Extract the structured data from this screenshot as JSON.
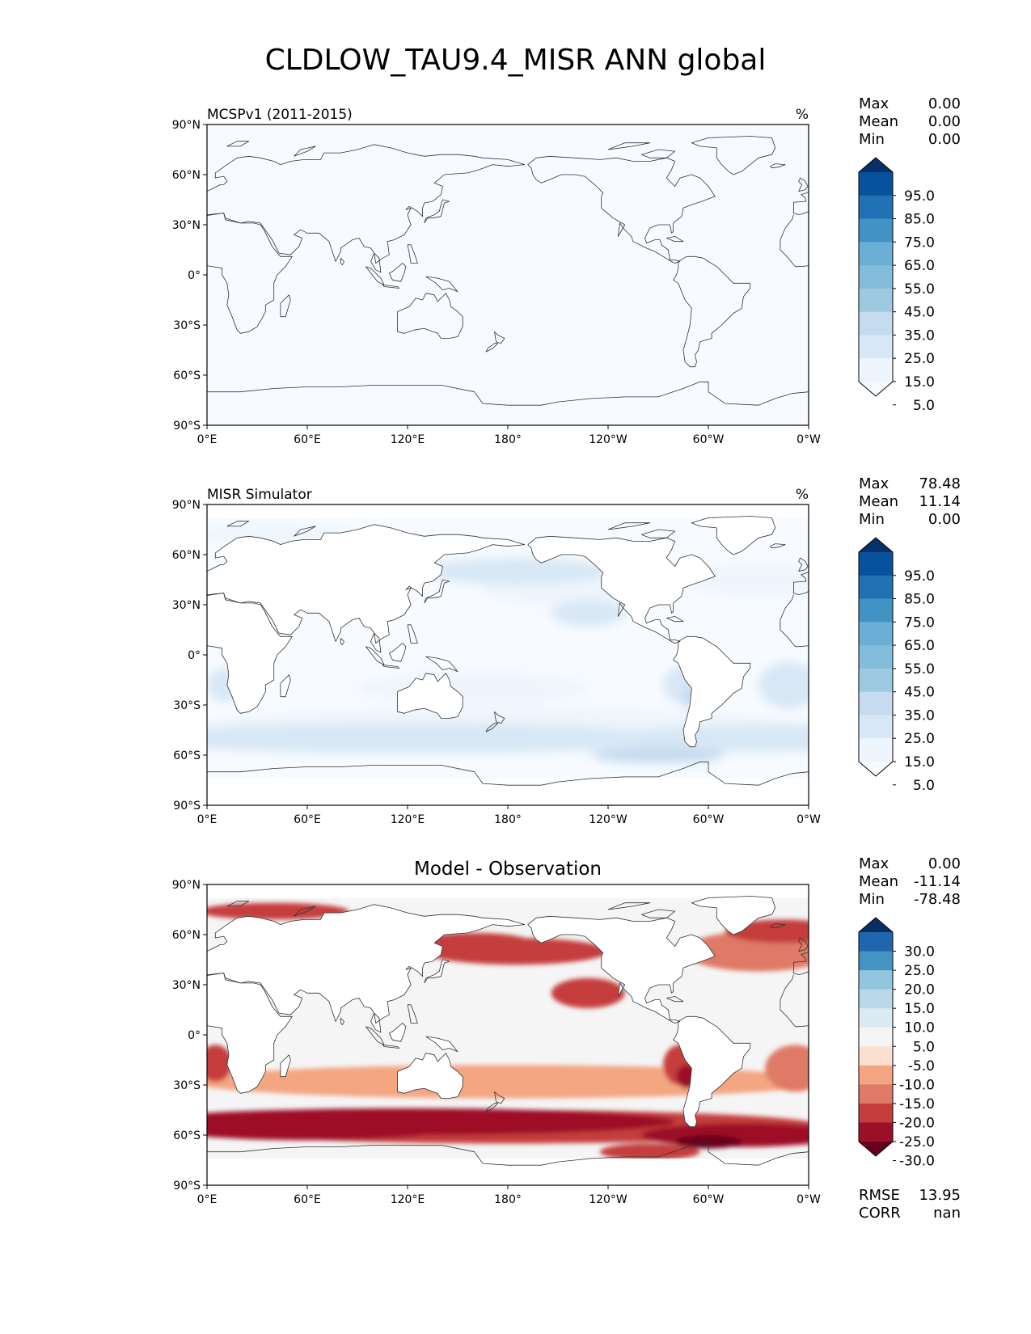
{
  "title": "CLDLOW_TAU9.4_MISR ANN global",
  "axes": {
    "lat_ticks": [
      "90°N",
      "60°N",
      "30°N",
      "0°",
      "30°S",
      "60°S",
      "90°S"
    ],
    "lon_ticks": [
      "0°E",
      "60°E",
      "120°E",
      "180°",
      "120°W",
      "60°W",
      "0°W"
    ]
  },
  "panels": [
    {
      "left_title": "MCSPv1 (2011-2015)",
      "center_title": "",
      "units": "%",
      "stats": [
        {
          "label": "Max",
          "value": "0.00"
        },
        {
          "label": "Mean",
          "value": "0.00"
        },
        {
          "label": "Min",
          "value": "0.00"
        }
      ],
      "colorbar": {
        "labels": [
          "95.0",
          "85.0",
          "75.0",
          "65.0",
          "55.0",
          "45.0",
          "35.0",
          "25.0",
          "15.0",
          "5.0"
        ],
        "colors": [
          "#08306b",
          "#08519c",
          "#2171b5",
          "#4292c6",
          "#6baed6",
          "#84bcdb",
          "#9ecae1",
          "#c6dbef",
          "#d8e7f5",
          "#eef5fc",
          "#f7fbff"
        ]
      }
    },
    {
      "left_title": "MISR Simulator",
      "center_title": "",
      "units": "%",
      "stats": [
        {
          "label": "Max",
          "value": "78.48"
        },
        {
          "label": "Mean",
          "value": "11.14"
        },
        {
          "label": "Min",
          "value": "0.00"
        }
      ],
      "colorbar": {
        "labels": [
          "95.0",
          "85.0",
          "75.0",
          "65.0",
          "55.0",
          "45.0",
          "35.0",
          "25.0",
          "15.0",
          "5.0"
        ],
        "colors": [
          "#08306b",
          "#08519c",
          "#2171b5",
          "#4292c6",
          "#6baed6",
          "#84bcdb",
          "#9ecae1",
          "#c6dbef",
          "#d8e7f5",
          "#eef5fc",
          "#f7fbff"
        ]
      }
    },
    {
      "left_title": "",
      "center_title": "Model - Observation",
      "units": "",
      "stats": [
        {
          "label": "Max",
          "value": "0.00"
        },
        {
          "label": "Mean",
          "value": "-11.14"
        },
        {
          "label": "Min",
          "value": "-78.48"
        }
      ],
      "colorbar": {
        "labels": [
          "30.0",
          "25.0",
          "20.0",
          "15.0",
          "10.0",
          "5.0",
          "-5.0",
          "-10.0",
          "-15.0",
          "-20.0",
          "-25.0",
          "-30.0"
        ],
        "colors": [
          "#053061",
          "#2166ac",
          "#4393c3",
          "#92c5de",
          "#b9d9ea",
          "#dceaf3",
          "#f5f5f5",
          "#fbe0d2",
          "#f4a582",
          "#df7a66",
          "#c53e3d",
          "#9d0f26",
          "#67001f"
        ]
      },
      "bottom_stats": [
        {
          "label": "RMSE",
          "value": "13.95"
        },
        {
          "label": "CORR",
          "value": "nan"
        }
      ]
    }
  ],
  "chart_data": [
    {
      "type": "heatmap",
      "title": "MCSPv1 (2011-2015)",
      "units": "%",
      "xlabel": "",
      "ylabel": "",
      "xlim": [
        0,
        360
      ],
      "ylim": [
        -90,
        90
      ],
      "field_summary": "uniform 0 everywhere",
      "stats": {
        "max": 0.0,
        "mean": 0.0,
        "min": 0.0
      },
      "levels": [
        5,
        15,
        25,
        35,
        45,
        55,
        65,
        75,
        85,
        95
      ]
    },
    {
      "type": "heatmap",
      "title": "MISR Simulator",
      "units": "%",
      "xlabel": "",
      "ylabel": "",
      "xlim": [
        0,
        360
      ],
      "ylim": [
        -90,
        90
      ],
      "stats": {
        "max": 78.48,
        "mean": 11.14,
        "min": 0.0
      },
      "levels": [
        5,
        15,
        25,
        35,
        45,
        55,
        65,
        75,
        85,
        95
      ]
    },
    {
      "type": "heatmap",
      "title": "Model - Observation",
      "xlabel": "",
      "ylabel": "",
      "xlim": [
        0,
        360
      ],
      "ylim": [
        -90,
        90
      ],
      "stats": {
        "max": 0.0,
        "mean": -11.14,
        "min": -78.48,
        "rmse": 13.95,
        "corr": "nan"
      },
      "levels": [
        -30,
        -25,
        -20,
        -15,
        -10,
        -5,
        5,
        10,
        15,
        20,
        25,
        30
      ]
    }
  ]
}
